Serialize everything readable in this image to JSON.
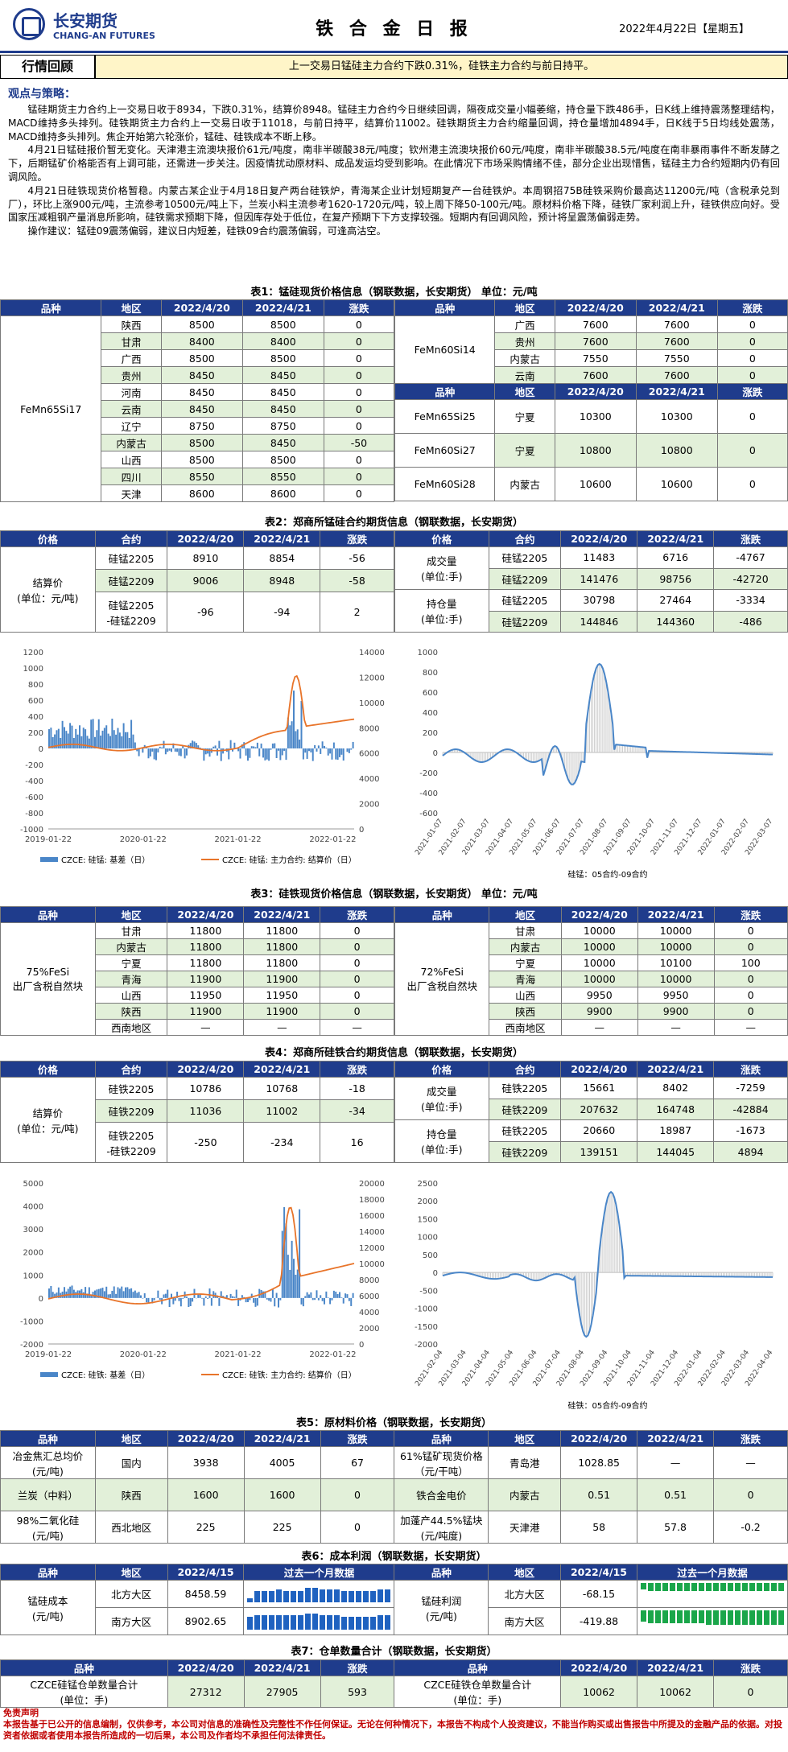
{
  "header": {
    "company_cn": "长安期货",
    "company_en": "CHANG-AN FUTURES",
    "title": "铁 合 金 日 报",
    "date": "2022年4月22日【星期五】"
  },
  "band": {
    "label": "行情回顾",
    "text": "上一交易日锰硅主力合约下跌0.31%，硅铁主力合约与前日持平。"
  },
  "views": {
    "title": "观点与策略：",
    "p1": "锰硅期货主力合约上一交易日收于8934，下跌0.31%，结算价8948。锰硅主力合约今日继续回调，隔夜成交量小幅萎缩，持仓量下跌486手，日K线上维持震荡整理结构，MACD维持多头排列。硅铁期货主力合约上一交易日收于11018，与前日持平，结算价11002。硅铁期货主力合约缩量回调，持仓量增加4894手，日K线于5日均线处震荡，MACD维持多头排列。焦企开始第六轮涨价，锰硅、硅铁成本不断上移。",
    "p2": "4月21日锰硅报价暂无变化。天津港主流澳块报价61元/吨度，南非半碳酸38元/吨度；钦州港主流澳块报价60元/吨度，南非半碳酸38.5元/吨度在南非暴雨事件不断发酵之下，后期锰矿价格能否有上调可能，还需进一步关注。因疫情扰动原材料、成品发运均受到影响。在此情况下市场采购情绪不佳，部分企业出现惜售，锰硅主力合约短期内仍有回调风险。",
    "p3": "4月21日硅铁现货价格暂稳。内蒙古某企业于4月18日复产两台硅铁炉，青海某企业计划短期复产一台硅铁炉。本周钢招75B硅铁采购价最高达11200元/吨（含税承兑到厂），环比上涨900元/吨，主流参考10500元/吨上下，兰炭小料主流参考1620-1720元/吨，较上周下降50-100元/吨。原材料价格下降，硅铁厂家利润上升，硅铁供应向好。受国家压减粗钢产量消息所影响，硅铁需求预期下降，但因库存处于低位，在复产预期下下方支撑较强。短期内有回调风险，预计将呈震荡偏弱走势。",
    "p4": "操作建议：锰硅09震荡偏弱，建议日内短差，硅铁09合约震荡偏弱，可逢高沽空。"
  },
  "t1": {
    "caption": "表1：锰硅现货价格信息（钢联数据，长安期货） 单位：元/吨",
    "h": [
      "品种",
      "地区",
      "2022/4/20",
      "2022/4/21",
      "涨跌"
    ],
    "name": "FeMn65Si17",
    "rows": [
      [
        "陕西",
        "8500",
        "8500",
        "0"
      ],
      [
        "甘肃",
        "8400",
        "8400",
        "0"
      ],
      [
        "广西",
        "8500",
        "8500",
        "0"
      ],
      [
        "贵州",
        "8450",
        "8450",
        "0"
      ],
      [
        "河南",
        "8450",
        "8450",
        "0"
      ],
      [
        "云南",
        "8450",
        "8450",
        "0"
      ],
      [
        "辽宁",
        "8750",
        "8750",
        "0"
      ],
      [
        "内蒙古",
        "8500",
        "8450",
        "-50"
      ],
      [
        "山西",
        "8500",
        "8500",
        "0"
      ],
      [
        "四川",
        "8550",
        "8550",
        "0"
      ],
      [
        "天津",
        "8600",
        "8600",
        "0"
      ]
    ],
    "r_name1": "FeMn60Si14",
    "r_rows1": [
      [
        "广西",
        "7600",
        "7600",
        "0"
      ],
      [
        "贵州",
        "7600",
        "7600",
        "0"
      ],
      [
        "内蒙古",
        "7550",
        "7550",
        "0"
      ],
      [
        "云南",
        "7600",
        "7600",
        "0"
      ]
    ],
    "r_rows2": [
      [
        "FeMn65Si25",
        "宁夏",
        "10300",
        "10300",
        "0"
      ],
      [
        "FeMn60Si27",
        "宁夏",
        "10800",
        "10800",
        "0"
      ],
      [
        "FeMn60Si28",
        "内蒙古",
        "10600",
        "10600",
        "0"
      ]
    ]
  },
  "t2": {
    "caption": "表2：郑商所锰硅合约期货信息（钢联数据，长安期货）",
    "h": [
      "价格",
      "合约",
      "2022/4/20",
      "2022/4/21",
      "涨跌"
    ],
    "label": "结算价\n(单位：元/吨)",
    "rows": [
      [
        "硅锰2205",
        "8910",
        "8854",
        "-56"
      ],
      [
        "硅锰2209",
        "9006",
        "8948",
        "-58"
      ],
      [
        "硅锰2205\n-硅锰2209",
        "-96",
        "-94",
        "2"
      ]
    ],
    "vol_label": "成交量\n(单位:手)",
    "oi_label": "持仓量\n(单位:手)",
    "r_rows": [
      [
        "硅锰2205",
        "11483",
        "6716",
        "-4767"
      ],
      [
        "硅锰2209",
        "141476",
        "98756",
        "-42720"
      ],
      [
        "硅锰2205",
        "30798",
        "27464",
        "-3334"
      ],
      [
        "硅锰2209",
        "144846",
        "144360",
        "-486"
      ]
    ]
  },
  "c1": {
    "legend1": "CZCE: 硅锰: 基差（日）",
    "legend2": "CZCE: 硅锰: 主力合约: 结算价（日）",
    "xl": [
      "2019-01-22",
      "2020-01-22",
      "2021-01-22",
      "2022-01-22"
    ],
    "yl": [
      "1200",
      "1000",
      "800",
      "600",
      "400",
      "200",
      "0",
      "-200",
      "-400",
      "-600",
      "-800",
      "-1000"
    ],
    "yr": [
      "14000",
      "12000",
      "10000",
      "8000",
      "6000",
      "4000",
      "2000",
      "0"
    ]
  },
  "c2": {
    "caption": "硅锰：05合约-09合约",
    "yl": [
      "1000",
      "800",
      "600",
      "400",
      "200",
      "0",
      "-200",
      "-400",
      "-600"
    ],
    "xl": [
      "2021-01-07",
      "2021-02-07",
      "2021-03-07",
      "2021-04-07",
      "2021-05-07",
      "2021-06-07",
      "2021-07-07",
      "2021-08-07",
      "2021-09-07",
      "2021-10-07",
      "2021-11-07",
      "2021-12-07",
      "2022-01-07",
      "2022-02-07",
      "2022-03-07"
    ]
  },
  "t3": {
    "caption": "表3：硅铁现货价格信息（钢联数据，长安期货） 单位：元/吨",
    "h": [
      "品种",
      "地区",
      "2022/4/20",
      "2022/4/21",
      "涨跌"
    ],
    "name1": "75%FeSi\n出厂含税自然块",
    "name2": "72%FeSi\n出厂含税自然块",
    "rows1": [
      [
        "甘肃",
        "11800",
        "11800",
        "0"
      ],
      [
        "内蒙古",
        "11800",
        "11800",
        "0"
      ],
      [
        "宁夏",
        "11800",
        "11800",
        "0"
      ],
      [
        "青海",
        "11900",
        "11900",
        "0"
      ],
      [
        "山西",
        "11950",
        "11950",
        "0"
      ],
      [
        "陕西",
        "11900",
        "11900",
        "0"
      ],
      [
        "西南地区",
        "—",
        "—",
        "—"
      ]
    ],
    "rows2": [
      [
        "甘肃",
        "10000",
        "10000",
        "0"
      ],
      [
        "内蒙古",
        "10000",
        "10000",
        "0"
      ],
      [
        "宁夏",
        "10000",
        "10100",
        "100"
      ],
      [
        "青海",
        "10000",
        "10000",
        "0"
      ],
      [
        "山西",
        "9950",
        "9950",
        "0"
      ],
      [
        "陕西",
        "9900",
        "9900",
        "0"
      ],
      [
        "西南地区",
        "—",
        "—",
        "—"
      ]
    ]
  },
  "t4": {
    "caption": "表4：郑商所硅铁合约期货信息（钢联数据，长安期货）",
    "h": [
      "价格",
      "合约",
      "2022/4/20",
      "2022/4/21",
      "涨跌"
    ],
    "label": "结算价\n(单位：元/吨)",
    "rows": [
      [
        "硅铁2205",
        "10786",
        "10768",
        "-18"
      ],
      [
        "硅铁2209",
        "11036",
        "11002",
        "-34"
      ],
      [
        "硅铁2205\n-硅铁2209",
        "-250",
        "-234",
        "16"
      ]
    ],
    "vol_label": "成交量\n(单位:手)",
    "oi_label": "持仓量\n(单位:手)",
    "r_rows": [
      [
        "硅铁2205",
        "15661",
        "8402",
        "-7259"
      ],
      [
        "硅铁2209",
        "207632",
        "164748",
        "-42884"
      ],
      [
        "硅铁2205",
        "20660",
        "18987",
        "-1673"
      ],
      [
        "硅铁2209",
        "139151",
        "144045",
        "4894"
      ]
    ]
  },
  "c3": {
    "legend1": "CZCE: 硅铁: 基差（日）",
    "legend2": "CZCE: 硅铁: 主力合约: 结算价（日）",
    "xl": [
      "2019-01-22",
      "2020-01-22",
      "2021-01-22",
      "2022-01-22"
    ],
    "yl": [
      "5000",
      "4000",
      "3000",
      "2000",
      "1000",
      "0",
      "-1000",
      "-2000"
    ],
    "yr": [
      "20000",
      "18000",
      "16000",
      "14000",
      "12000",
      "10000",
      "8000",
      "6000",
      "4000",
      "2000",
      "0"
    ]
  },
  "c4": {
    "caption": "硅铁：05合约-09合约",
    "yl": [
      "2500",
      "2000",
      "1500",
      "1000",
      "500",
      "0",
      "-500",
      "-1000",
      "-1500",
      "-2000"
    ],
    "xl": [
      "2021-02-04",
      "2021-03-04",
      "2021-04-04",
      "2021-05-04",
      "2021-06-04",
      "2021-07-04",
      "2021-08-04",
      "2021-09-04",
      "2021-10-04",
      "2021-11-04",
      "2021-12-04",
      "2022-01-04",
      "2022-02-04",
      "2022-03-04",
      "2022-04-04"
    ]
  },
  "t5": {
    "caption": "表5：原材料价格（钢联数据，长安期货）",
    "h": [
      "品种",
      "地区",
      "2022/4/20",
      "2022/4/21",
      "涨跌"
    ],
    "rows": [
      [
        "冶金焦汇总均价\n(元/吨)",
        "国内",
        "3938",
        "4005",
        "67",
        "61%锰矿现货价格（元/干吨）",
        "青岛港",
        "1028.85",
        "—",
        "—"
      ],
      [
        "兰炭（中料）",
        "陕西",
        "1600",
        "1600",
        "0",
        "铁合金电价",
        "内蒙古",
        "0.51",
        "0.51",
        "0"
      ],
      [
        "98%二氧化硅\n(元/吨)",
        "西北地区",
        "225",
        "225",
        "0",
        "加蓬产44.5%锰块(元/吨度)",
        "天津港",
        "58",
        "57.8",
        "-0.2"
      ]
    ]
  },
  "t6": {
    "caption": "表6：成本利润（钢联数据，长安期货）",
    "h": [
      "品种",
      "地区",
      "2022/4/15",
      "过去一个月数据"
    ],
    "l_label": "锰硅成本\n(元/吨)",
    "r_label": "锰硅利润\n(元/吨)",
    "l_rows": [
      [
        "北方大区",
        "8458.59"
      ],
      [
        "南方大区",
        "8902.65"
      ]
    ],
    "r_rows": [
      [
        "北方大区",
        "-68.15"
      ],
      [
        "南方大区",
        "-419.88"
      ]
    ]
  },
  "t7": {
    "caption": "表7：仓单数量合计（钢联数据，长安期货）",
    "h": [
      "品种",
      "2022/4/20",
      "2022/4/21",
      "涨跌"
    ],
    "l": [
      "CZCE硅锰仓单数量合计\n(单位：手)",
      "27312",
      "27905",
      "593"
    ],
    "r": [
      "CZCE硅铁仓单数量合计\n(单位：手)",
      "10062",
      "10062",
      "0"
    ]
  },
  "disclaimer": {
    "title": "免责声明",
    "text": "本报告基于已公开的信息编制，仅供参考，本公司对信息的准确性及完整性不作任何保证。无论在何种情况下，本报告不构成个人投资建议，不能当作购买或出售报告中所提及的金融产品的依据。对投资者依据或者使用本报告所造成的一切后果，本公司及作者均不承担任何法律责任。"
  },
  "colors": {
    "navy": "#1f3c8c",
    "green": "#e2f0d9",
    "blue": "#4a86c8",
    "orange": "#e8742a"
  }
}
